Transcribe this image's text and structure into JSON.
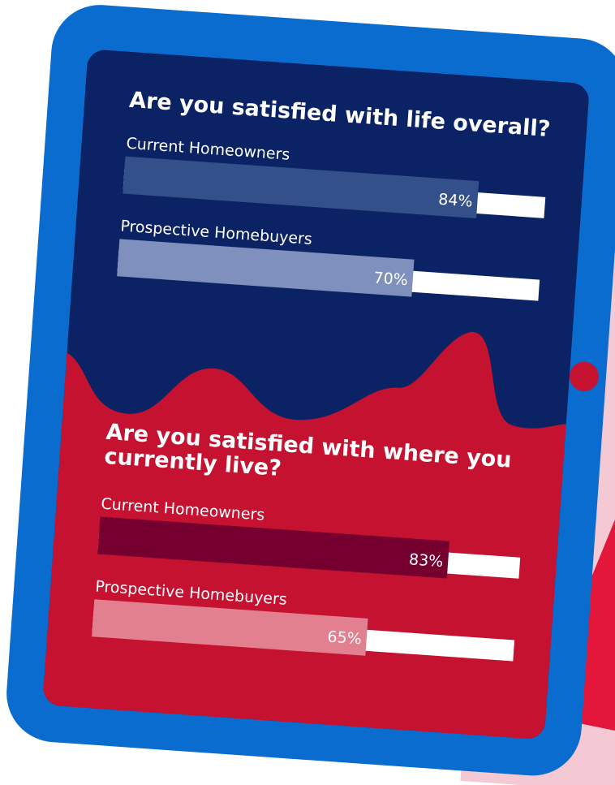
{
  "chart_data": [
    {
      "type": "bar",
      "title": "Are you satisfied with life overall?",
      "categories": [
        "Current Homeowners",
        "Prospective Homebuyers"
      ],
      "values": [
        84,
        70
      ],
      "value_labels": [
        "84%",
        "70%"
      ],
      "colors": [
        "#34508a",
        "#7f90bd"
      ],
      "xlim": [
        0,
        100
      ]
    },
    {
      "type": "bar",
      "title": "Are you satisfied with where you currently live?",
      "categories": [
        "Current Homeowners",
        "Prospective Homebuyers"
      ],
      "values": [
        83,
        65
      ],
      "value_labels": [
        "83%",
        "65%"
      ],
      "colors": [
        "#75002f",
        "#e2808f"
      ],
      "xlim": [
        0,
        100
      ]
    }
  ]
}
